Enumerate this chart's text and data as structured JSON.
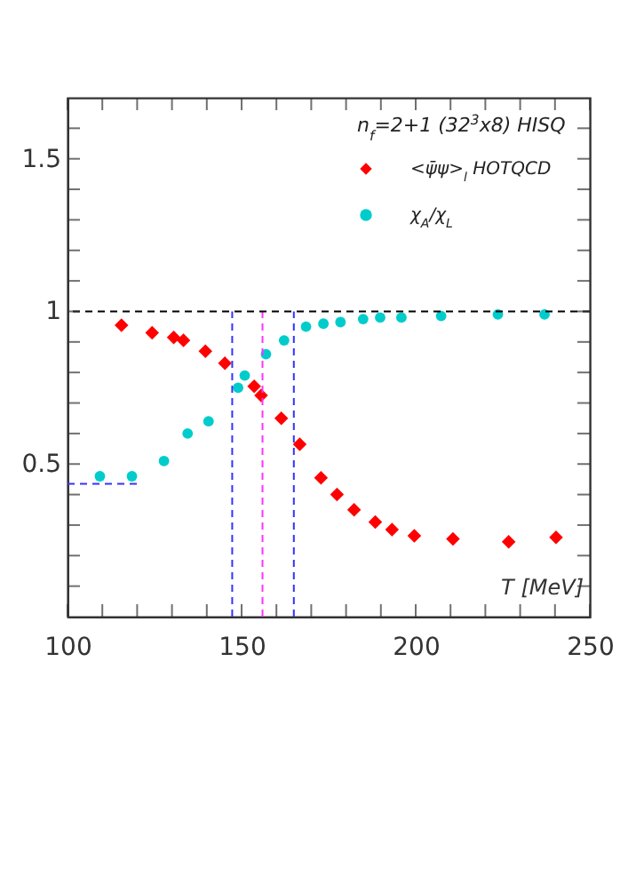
{
  "chart_data": {
    "type": "scatter",
    "xlabel": "T [MeV]",
    "legend_title": "n$_{f}$=2+1 (32$^{3}$x8) HISQ",
    "legend": "top right",
    "xlim": [
      100,
      250
    ],
    "ylim": [
      0,
      1.7
    ],
    "xticks": [
      100,
      {
        "value": 110,
        "label": null
      },
      {
        "value": 120,
        "label": null
      },
      {
        "value": 130,
        "label": null
      },
      {
        "value": 140,
        "label": null
      },
      150,
      {
        "value": 160,
        "label": null
      },
      {
        "value": 170,
        "label": null
      },
      {
        "value": 180,
        "label": null
      },
      {
        "value": 190,
        "label": null
      },
      200,
      {
        "value": 210,
        "label": null
      },
      {
        "value": 220,
        "label": null
      },
      {
        "value": 230,
        "label": null
      },
      {
        "value": 240,
        "label": null
      },
      250
    ],
    "yticks": [
      {
        "value": 0.1,
        "label": null
      },
      {
        "value": 0.2,
        "label": null
      },
      {
        "value": 0.3,
        "label": null
      },
      {
        "value": 0.4,
        "label": null
      },
      0.5,
      {
        "value": 0.6,
        "label": null
      },
      {
        "value": 0.7,
        "label": null
      },
      {
        "value": 0.8,
        "label": null
      },
      {
        "value": 0.9,
        "label": null
      },
      1,
      {
        "value": 1.1,
        "label": null
      },
      {
        "value": 1.2,
        "label": null
      },
      {
        "value": 1.3,
        "label": null
      },
      {
        "value": 1.4,
        "label": null
      },
      1.5,
      {
        "value": 1.6,
        "label": null
      }
    ],
    "ref_lines": [
      {
        "axis": "y",
        "value": 1,
        "color": "#000000",
        "line_style": "dashed"
      }
    ],
    "series": [
      {
        "name": "<ψ̄ψ>$_{l}$  HOTQCD",
        "marker": "diamond",
        "color": "#ff0000",
        "x": [
          115.5,
          124.3,
          130.5,
          133.3,
          139.6,
          145.2,
          153.6,
          155.6,
          161.4,
          166.7,
          172.8,
          177.4,
          182.3,
          188.4,
          193.2,
          199.6,
          210.7,
          226.7,
          240.3
        ],
        "values": [
          0.955,
          0.93,
          0.915,
          0.905,
          0.87,
          0.83,
          0.755,
          0.725,
          0.65,
          0.565,
          0.455,
          0.4,
          0.35,
          0.31,
          0.285,
          0.265,
          0.255,
          0.245,
          0.26
        ]
      },
      {
        "name": "χ$_{A}$/χ$_{L}$",
        "marker": "circle",
        "color": "#00cccc",
        "x": [
          109.3,
          118.5,
          127.7,
          134.5,
          140.5,
          149,
          150.9,
          157,
          162.2,
          168.5,
          173.5,
          178.4,
          184.9,
          189.8,
          195.9,
          207.3,
          223.6,
          237
        ],
        "values": [
          0.46,
          0.46,
          0.51,
          0.6,
          0.64,
          0.75,
          0.79,
          0.86,
          0.905,
          0.95,
          0.96,
          0.965,
          0.975,
          0.98,
          0.98,
          0.985,
          0.99,
          0.99
        ]
      },
      {
        "type": "line",
        "line_style": "dashed",
        "color": "#3333ff",
        "x": [
          100,
          120
        ],
        "values": [
          0.435,
          0.435
        ]
      },
      {
        "type": "line",
        "line_style": "dashed",
        "color": "#3333ff",
        "x": [
          147.3,
          147.3
        ],
        "values": [
          0,
          1
        ]
      },
      {
        "type": "line",
        "line_style": "dashed",
        "color": "#ff33ff",
        "x": [
          156,
          156
        ],
        "values": [
          0,
          1
        ]
      },
      {
        "type": "line",
        "line_style": "dashed",
        "color": "#3333ff",
        "x": [
          165,
          165
        ],
        "values": [
          0,
          1
        ]
      }
    ]
  }
}
